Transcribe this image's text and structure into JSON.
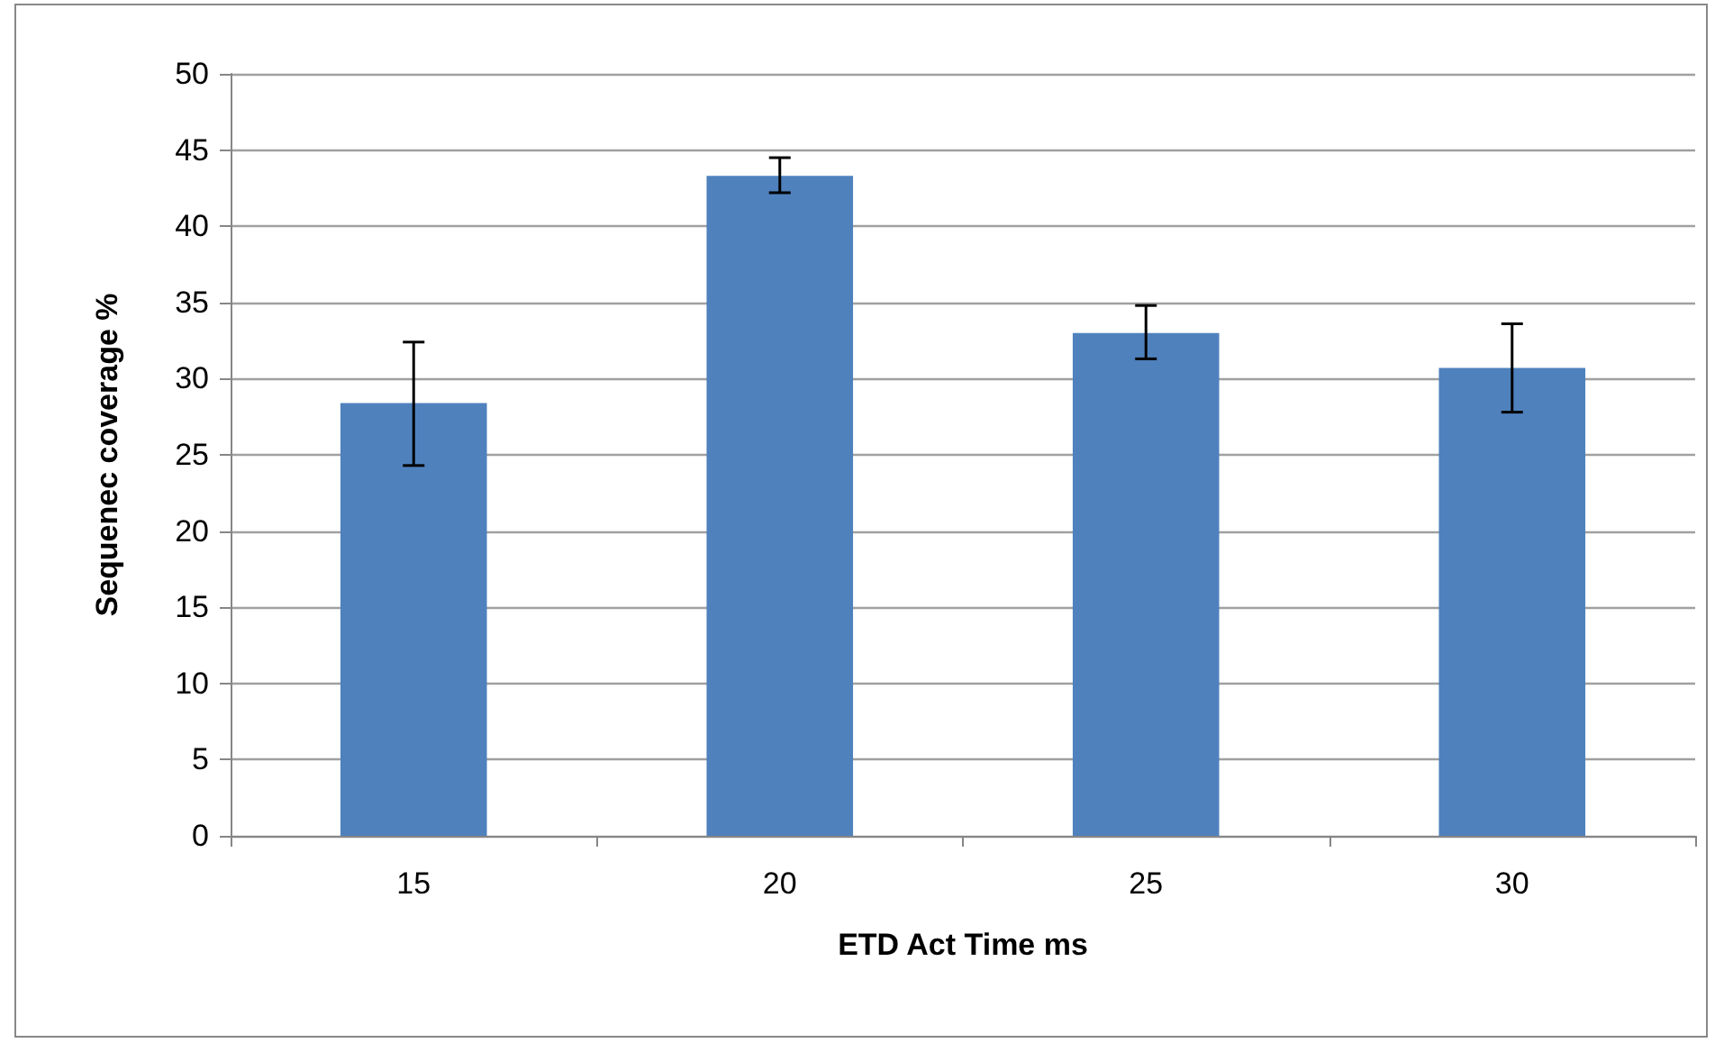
{
  "chart_data": {
    "type": "bar",
    "xlabel": "ETD Act Time ms",
    "ylabel": "Sequenec coverage %",
    "categories": [
      "15",
      "20",
      "25",
      "30"
    ],
    "values": [
      28.4,
      43.3,
      33.0,
      30.7
    ],
    "errors": [
      [
        24.3,
        32.4
      ],
      [
        42.2,
        44.5
      ],
      [
        31.3,
        34.8
      ],
      [
        27.8,
        33.6
      ]
    ],
    "color": "#4f81bd",
    "ylim": [
      0,
      50
    ],
    "yticks": [
      0,
      5,
      10,
      15,
      20,
      25,
      30,
      35,
      40,
      45,
      50
    ],
    "grid": "y"
  }
}
